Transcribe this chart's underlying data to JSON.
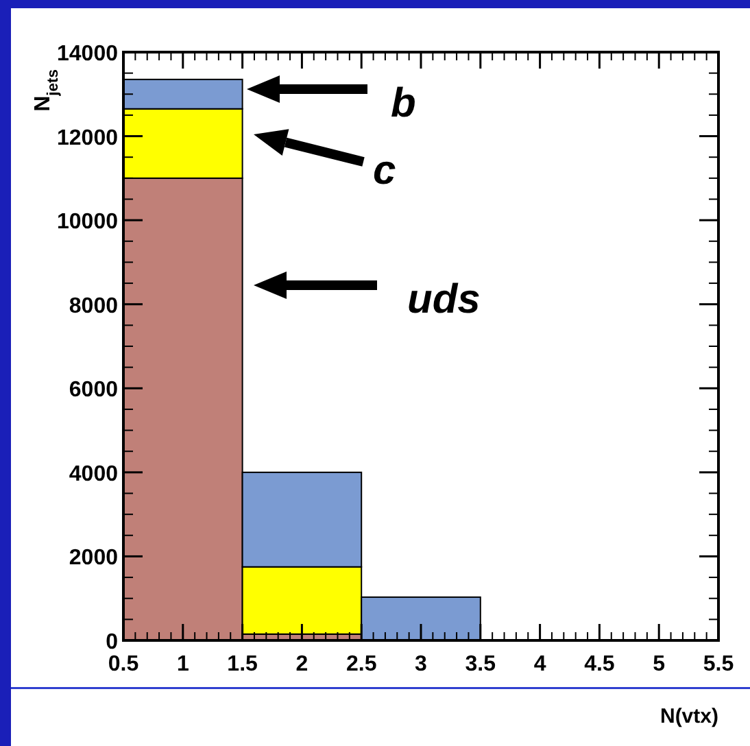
{
  "chart_data": {
    "type": "bar",
    "ylabel": "N$_{jets}$",
    "xlabel": "N(vtx)",
    "x": [
      1,
      2,
      3,
      4,
      5
    ],
    "stacked": true,
    "legend": "top",
    "series": [
      {
        "name": "uds",
        "color": "#c08078",
        "values": [
          11000,
          150,
          0,
          0,
          0
        ]
      },
      {
        "name": "c",
        "color": "#ffff00",
        "values": [
          1650,
          1600,
          0,
          0,
          0
        ]
      },
      {
        "name": "b",
        "color": "#7b9bd2",
        "values": [
          700,
          2250,
          1030,
          0,
          0
        ]
      }
    ],
    "xlim": [
      0.5,
      5.5
    ],
    "xticks": [
      0.5,
      1,
      1.5,
      2,
      2.5,
      3,
      3.5,
      4,
      4.5,
      5,
      5.5
    ],
    "ylim": [
      0,
      14000
    ],
    "yticks": [
      0,
      2000,
      4000,
      6000,
      8000,
      10000,
      12000,
      14000
    ]
  }
}
